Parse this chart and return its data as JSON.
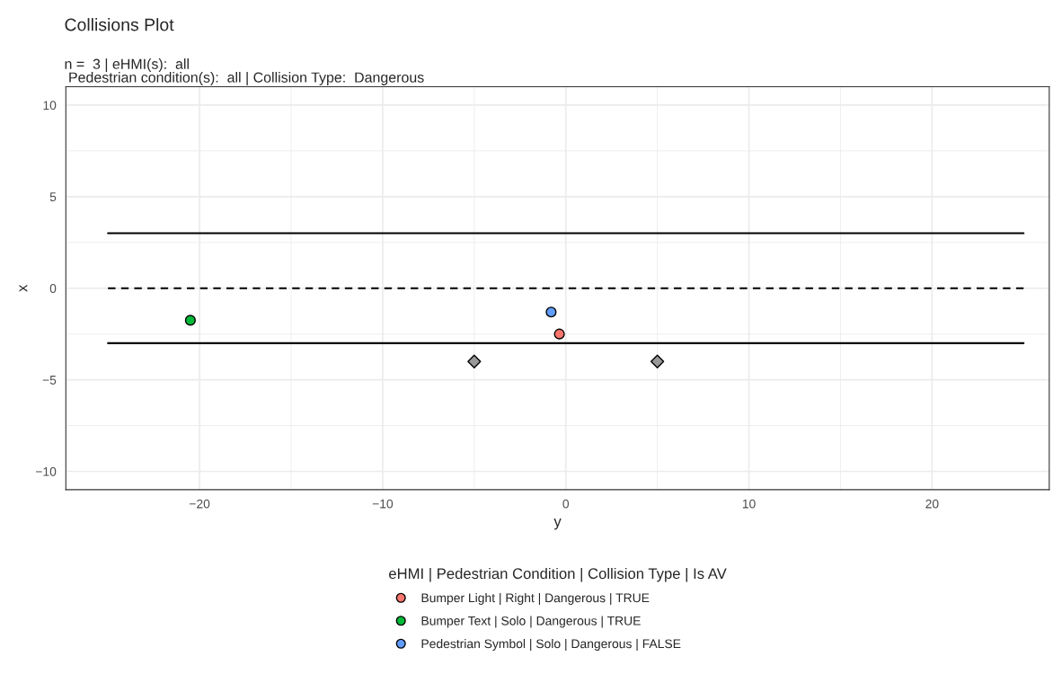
{
  "chart_data": {
    "type": "scatter",
    "title": "Collisions Plot",
    "subtitle": "n =  3 | eHMI(s):  all\n Pedestrian condition(s):  all | Collision Type:  Dangerous",
    "xlabel": "y",
    "ylabel": "x",
    "legend_title": "eHMI | Pedestrian Condition | Collision Type | Is AV",
    "xlim": [
      -27.3,
      26.4
    ],
    "ylim": [
      -11,
      11
    ],
    "xticks": [
      {
        "value": -20,
        "label": "−20"
      },
      {
        "value": -10,
        "label": "−10"
      },
      0,
      10,
      20
    ],
    "yticks": [
      {
        "value": -10,
        "label": "−10"
      },
      {
        "value": -5,
        "label": "−5"
      },
      0,
      5,
      10
    ],
    "grid": true,
    "legend": "bottom",
    "marker": "circle",
    "series": [
      {
        "type": "line",
        "color": "#000000",
        "line_style": "solid",
        "marker": "none",
        "x": [
          -25,
          25
        ],
        "values": [
          3,
          3
        ]
      },
      {
        "type": "line",
        "color": "#000000",
        "line_style": "dashed",
        "marker": "none",
        "x": [
          -25,
          25
        ],
        "values": [
          0,
          0
        ]
      },
      {
        "type": "line",
        "color": "#000000",
        "line_style": "solid",
        "marker": "none",
        "x": [
          -25,
          25
        ],
        "values": [
          -3,
          -3
        ]
      },
      {
        "type": "scatter",
        "color": "#999999",
        "marker": "diamond",
        "x": [
          -5,
          5
        ],
        "values": [
          -4,
          -4
        ]
      },
      {
        "name": "Bumper Light | Right | Dangerous | TRUE",
        "color": "#F8766D",
        "x": [
          -0.35
        ],
        "values": [
          -2.5
        ]
      },
      {
        "name": "Bumper Text | Solo | Dangerous | TRUE",
        "color": "#00BA38",
        "x": [
          -20.5
        ],
        "values": [
          -1.75
        ]
      },
      {
        "name": "Pedestrian Symbol | Solo | Dangerous | FALSE",
        "color": "#619CFF",
        "x": [
          -0.8
        ],
        "values": [
          -1.3
        ]
      }
    ]
  }
}
